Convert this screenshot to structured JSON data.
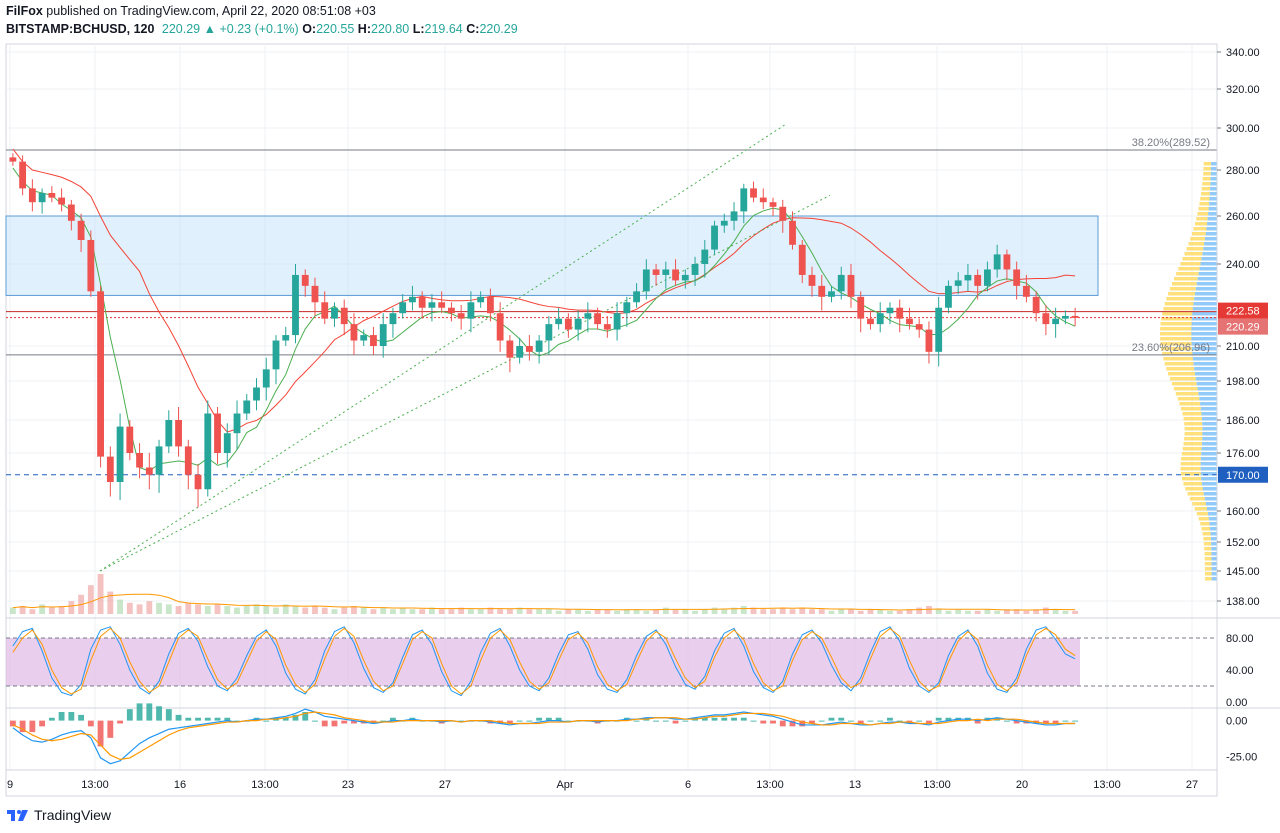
{
  "header": {
    "author": "FilFox",
    "published_text": "published on TradingView.com, April 22, 2020 08:51:08 +03",
    "symbol": "BITSTAMP:BCHUSD",
    "interval": "120",
    "last": "220.29",
    "change_arrow": "▲",
    "change": "+0.23 (+0.1%)",
    "o_label": "O:",
    "o_value": "220.55",
    "h_label": "H:",
    "h_value": "220.80",
    "l_label": "L:",
    "l_value": "219.64",
    "c_label": "C:",
    "c_value": "220.29"
  },
  "footer": {
    "brand": "TradingView"
  },
  "colors": {
    "up": "#26a69a",
    "down": "#ef5350",
    "ma": "#f44336",
    "ma_green": "#4caf50",
    "zone": "#bbdefb",
    "stoch_band": "#e1bee7",
    "vp_up": "#ffd54f",
    "vp_down": "#64b5f6",
    "tag_red": "#e53935",
    "tag_blue": "#1e5fbf"
  },
  "chart_data": [
    {
      "type": "candlestick",
      "title": "BITSTAMP:BCHUSD, 120",
      "ylim": [
        133,
        343
      ],
      "y_ticks": [
        "340.00",
        "320.00",
        "300.00",
        "280.00",
        "260.00",
        "240.00",
        "210.00",
        "198.00",
        "186.00",
        "176.00",
        "160.00",
        "152.00",
        "145.00",
        "138.00"
      ],
      "x_ticks": [
        "9",
        "13:00",
        "16",
        "13:00",
        "23",
        "27",
        "Apr",
        "6",
        "13:00",
        "13",
        "13:00",
        "20",
        "13:00",
        "27"
      ],
      "price_tags": [
        {
          "label": "222.58",
          "value": 222.58
        },
        {
          "label": "220.29",
          "value": 220.29
        },
        {
          "label": "170.00",
          "value": 170.0
        }
      ],
      "fib_levels": [
        {
          "label": "38.20%(289.52)",
          "value": 289.52
        },
        {
          "label": "23.60%(206.96)",
          "value": 206.96
        }
      ],
      "zone": {
        "from": 228.5,
        "to": 260.0
      },
      "horizontal_lines": [
        170.0,
        222.58
      ],
      "trend_lines": [
        {
          "start": [
            "Mar 11",
            145.0
          ],
          "end": [
            "Apr 8",
            302.0
          ]
        },
        {
          "start": [
            "Mar 11",
            145.0
          ],
          "end": [
            "Apr 11",
            269.0
          ]
        }
      ],
      "closes": [
        284,
        272,
        266,
        270,
        268,
        265,
        258,
        250,
        230,
        175,
        168,
        184,
        176,
        172,
        170,
        178,
        186,
        178,
        170,
        166,
        188,
        176,
        182,
        188,
        192,
        196,
        202,
        212,
        214,
        236,
        232,
        226,
        220,
        224,
        218,
        212,
        214,
        210,
        218,
        222,
        226,
        228,
        224,
        226,
        224,
        222,
        220,
        226,
        228,
        222,
        212,
        206,
        210,
        208,
        212,
        218,
        220,
        216,
        220,
        222,
        218,
        216,
        222,
        226,
        230,
        238,
        236,
        238,
        234,
        236,
        240,
        246,
        256,
        258,
        262,
        272,
        268,
        266,
        264,
        258,
        248,
        236,
        232,
        228,
        230,
        236,
        228,
        220,
        218,
        222,
        224,
        220,
        218,
        216,
        208,
        224,
        232,
        234,
        236,
        232,
        238,
        244,
        238,
        232,
        228,
        222,
        218,
        220,
        221,
        220.29
      ],
      "volumes": [
        4,
        5,
        3,
        6,
        4,
        5,
        8,
        12,
        18,
        25,
        14,
        9,
        7,
        6,
        8,
        7,
        6,
        5,
        7,
        6,
        5,
        6,
        5,
        4,
        5,
        6,
        5,
        4,
        6,
        5,
        4,
        5,
        4,
        3,
        4,
        5,
        4,
        3,
        4,
        3,
        4,
        3,
        3,
        4,
        3,
        3,
        4,
        3,
        3,
        4,
        3,
        3,
        4,
        3,
        3,
        3,
        2,
        3,
        3,
        2,
        3,
        3,
        2,
        3,
        3,
        2,
        3,
        4,
        3,
        3,
        2,
        3,
        4,
        3,
        4,
        5,
        4,
        3,
        3,
        4,
        3,
        4,
        3,
        3,
        2,
        3,
        3,
        2,
        3,
        3,
        2,
        2,
        3,
        4,
        5,
        3,
        2,
        3,
        2,
        2,
        3,
        2,
        3,
        3,
        2,
        3,
        4,
        3,
        2,
        2
      ]
    },
    {
      "type": "line",
      "title": "Stochastic",
      "ylim": [
        0,
        100
      ],
      "y_ticks": [
        "80.00",
        "40.00",
        "0.00"
      ],
      "band": [
        20,
        80
      ],
      "series": [
        {
          "values": [
            70,
            88,
            92,
            64,
            30,
            12,
            8,
            22,
            66,
            90,
            94,
            72,
            40,
            18,
            10,
            26,
            60,
            86,
            92,
            76,
            44,
            20,
            14,
            30,
            58,
            82,
            90,
            70,
            36,
            16,
            10,
            28,
            64,
            88,
            94,
            74,
            42,
            18,
            12,
            24,
            56,
            84,
            90,
            72,
            38,
            14,
            8,
            26,
            62,
            86,
            92,
            70,
            40,
            20,
            14,
            30,
            60,
            84,
            88,
            66,
            34,
            16,
            12,
            28,
            58,
            82,
            90,
            72,
            44,
            22,
            16,
            32,
            64,
            86,
            92,
            70,
            38,
            18,
            12,
            26,
            60,
            84,
            90,
            74,
            46,
            24,
            14,
            30,
            62,
            88,
            94,
            76,
            42,
            20,
            12,
            24,
            58,
            82,
            90,
            70,
            36,
            16,
            12,
            30,
            66,
            90,
            94,
            78,
            60,
            54
          ]
        },
        {
          "values": [
            62,
            80,
            90,
            72,
            40,
            18,
            10,
            16,
            52,
            82,
            92,
            80,
            50,
            26,
            12,
            20,
            50,
            80,
            90,
            82,
            54,
            28,
            16,
            24,
            50,
            76,
            88,
            78,
            46,
            22,
            12,
            22,
            54,
            82,
            92,
            82,
            52,
            26,
            14,
            20,
            48,
            78,
            88,
            80,
            48,
            20,
            10,
            20,
            52,
            80,
            90,
            78,
            50,
            26,
            16,
            24,
            52,
            78,
            86,
            74,
            44,
            22,
            14,
            22,
            50,
            76,
            88,
            80,
            54,
            30,
            18,
            26,
            56,
            80,
            90,
            78,
            48,
            24,
            14,
            20,
            52,
            78,
            88,
            80,
            56,
            30,
            18,
            24,
            54,
            82,
            92,
            82,
            52,
            26,
            14,
            20,
            50,
            76,
            88,
            78,
            46,
            22,
            14,
            24,
            58,
            84,
            92,
            84,
            66,
            58
          ]
        }
      ]
    },
    {
      "type": "line",
      "title": "MACD",
      "ylim": [
        -33,
        6
      ],
      "y_ticks": [
        "0.00",
        "-25.00"
      ],
      "series": [
        {
          "values": [
            -5,
            -10,
            -14,
            -15,
            -13,
            -10,
            -8,
            -7,
            -12,
            -26,
            -30,
            -28,
            -22,
            -16,
            -12,
            -9,
            -6,
            -5,
            -4,
            -3,
            -2,
            -1,
            0,
            -1,
            0,
            1,
            1,
            2,
            3,
            5,
            8,
            6,
            3,
            2,
            1,
            0,
            -1,
            -2,
            -1,
            0,
            0,
            1,
            0,
            0,
            -1,
            0,
            -1,
            0,
            0,
            -1,
            -2,
            -3,
            -2,
            -2,
            -1,
            0,
            0,
            -1,
            0,
            0,
            -1,
            0,
            0,
            1,
            1,
            2,
            2,
            2,
            1,
            1,
            2,
            3,
            4,
            4,
            5,
            6,
            5,
            4,
            3,
            1,
            -1,
            -3,
            -3,
            -3,
            -2,
            -1,
            -2,
            -3,
            -3,
            -2,
            -1,
            -1,
            -2,
            -2,
            -3,
            -1,
            0,
            1,
            1,
            0,
            1,
            2,
            1,
            0,
            -1,
            -2,
            -3,
            -3,
            -2,
            -2
          ]
        },
        {
          "values": [
            -3,
            -6,
            -10,
            -13,
            -14,
            -13,
            -11,
            -9,
            -10,
            -17,
            -24,
            -27,
            -26,
            -22,
            -18,
            -14,
            -10,
            -7,
            -5,
            -4,
            -3,
            -2,
            -1,
            -1,
            0,
            0,
            1,
            1,
            2,
            3,
            5,
            6,
            5,
            4,
            2,
            1,
            0,
            -1,
            -1,
            -1,
            0,
            0,
            0,
            0,
            0,
            0,
            -1,
            0,
            0,
            0,
            -1,
            -2,
            -2,
            -2,
            -2,
            -1,
            -1,
            -1,
            0,
            0,
            0,
            0,
            0,
            0,
            1,
            1,
            2,
            2,
            2,
            1,
            1,
            2,
            3,
            3,
            4,
            5,
            5,
            5,
            4,
            3,
            1,
            -1,
            -2,
            -3,
            -3,
            -2,
            -2,
            -2,
            -3,
            -2,
            -2,
            -1,
            -1,
            -2,
            -2,
            -2,
            -1,
            0,
            0,
            1,
            0,
            1,
            1,
            1,
            0,
            -1,
            -2,
            -2,
            -2,
            -2
          ]
        }
      ],
      "histogram_baseline": 0
    }
  ]
}
